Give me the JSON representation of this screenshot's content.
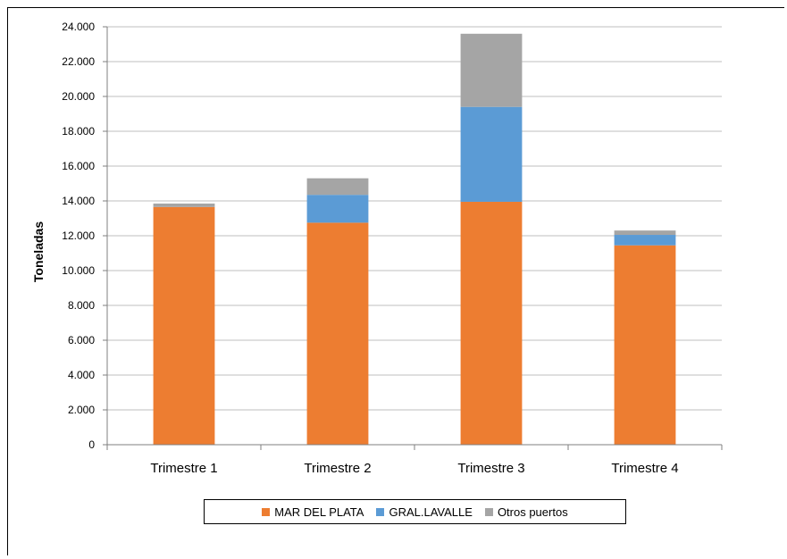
{
  "chart_data": {
    "type": "bar",
    "stacked": true,
    "title": "",
    "xlabel": "",
    "ylabel": "Toneladas",
    "ylim": [
      0,
      24000
    ],
    "yticks": [
      0,
      2000,
      4000,
      6000,
      8000,
      10000,
      12000,
      14000,
      16000,
      18000,
      20000,
      22000,
      24000
    ],
    "ytick_labels": [
      "0",
      "2.000",
      "4.000",
      "6.000",
      "8.000",
      "10.000",
      "12.000",
      "14.000",
      "16.000",
      "18.000",
      "20.000",
      "22.000",
      "24.000"
    ],
    "categories": [
      "Trimestre 1",
      "Trimestre 2",
      "Trimestre 3",
      "Trimestre 4"
    ],
    "series": [
      {
        "name": "MAR DEL PLATA",
        "color": "#ED7D31",
        "values": [
          13650,
          12750,
          13950,
          11450
        ]
      },
      {
        "name": "GRAL.LAVALLE",
        "color": "#5B9BD5",
        "values": [
          0,
          1600,
          5450,
          600
        ]
      },
      {
        "name": "Otros puertos",
        "color": "#A5A5A5",
        "values": [
          200,
          950,
          4200,
          250
        ]
      }
    ],
    "grid": true,
    "legend_position": "bottom"
  }
}
